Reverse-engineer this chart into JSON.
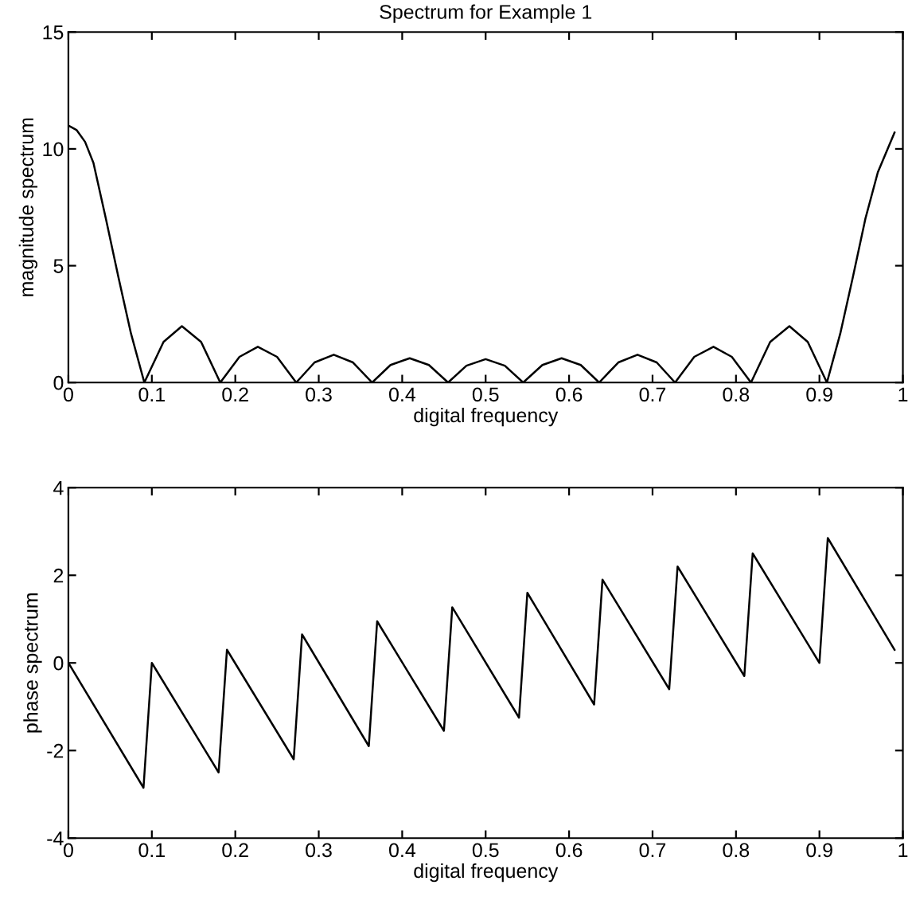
{
  "chart_data": [
    {
      "type": "line",
      "title": "Spectrum for Example 1",
      "xlabel": "digital frequency",
      "ylabel": "magnitude spectrum",
      "xlim": [
        0,
        1
      ],
      "ylim": [
        0,
        15
      ],
      "xticks": [
        0,
        0.1,
        0.2,
        0.3,
        0.4,
        0.5,
        0.6,
        0.7,
        0.8,
        0.9,
        1
      ],
      "yticks": [
        0,
        5,
        10,
        15
      ],
      "grid": false,
      "legend": false,
      "series": [
        {
          "color": "#000000",
          "x": [
            0,
            0.01,
            0.02,
            0.03,
            0.045,
            0.06,
            0.075,
            0.091,
            0.114,
            0.136,
            0.159,
            0.182,
            0.205,
            0.227,
            0.25,
            0.273,
            0.295,
            0.318,
            0.341,
            0.364,
            0.386,
            0.409,
            0.432,
            0.455,
            0.477,
            0.5,
            0.523,
            0.545,
            0.568,
            0.591,
            0.614,
            0.636,
            0.659,
            0.682,
            0.705,
            0.727,
            0.75,
            0.773,
            0.795,
            0.818,
            0.841,
            0.864,
            0.886,
            0.909,
            0.925,
            0.94,
            0.955,
            0.97,
            0.99
          ],
          "values": [
            11,
            10.8,
            10.3,
            9.4,
            7.0,
            4.5,
            2.1,
            0,
            1.74,
            2.41,
            1.74,
            0,
            1.1,
            1.53,
            1.1,
            0,
            0.86,
            1.19,
            0.86,
            0,
            0.75,
            1.04,
            0.75,
            0,
            0.72,
            1.0,
            0.72,
            0,
            0.75,
            1.04,
            0.75,
            0,
            0.86,
            1.19,
            0.86,
            0,
            1.1,
            1.53,
            1.1,
            0,
            1.74,
            2.41,
            1.74,
            0,
            2.1,
            4.5,
            7.0,
            9.0,
            10.7
          ]
        }
      ]
    },
    {
      "type": "line",
      "xlabel": "digital frequency",
      "ylabel": "phase spectrum",
      "xlim": [
        0,
        1
      ],
      "ylim": [
        -4,
        4
      ],
      "xticks": [
        0,
        0.1,
        0.2,
        0.3,
        0.4,
        0.5,
        0.6,
        0.7,
        0.8,
        0.9,
        1
      ],
      "yticks": [
        -4,
        -2,
        0,
        2,
        4
      ],
      "grid": false,
      "legend": false,
      "series": [
        {
          "color": "#000000",
          "x": [
            0,
            0.09,
            0.1,
            0.18,
            0.19,
            0.27,
            0.28,
            0.36,
            0.37,
            0.45,
            0.46,
            0.54,
            0.55,
            0.63,
            0.64,
            0.72,
            0.73,
            0.81,
            0.82,
            0.9,
            0.91,
            0.99
          ],
          "values": [
            0,
            -2.85,
            0,
            -2.5,
            0.3,
            -2.2,
            0.65,
            -1.9,
            0.95,
            -1.55,
            1.27,
            -1.25,
            1.6,
            -0.95,
            1.9,
            -0.6,
            2.2,
            -0.3,
            2.5,
            0,
            2.85,
            0.3
          ]
        }
      ]
    }
  ]
}
